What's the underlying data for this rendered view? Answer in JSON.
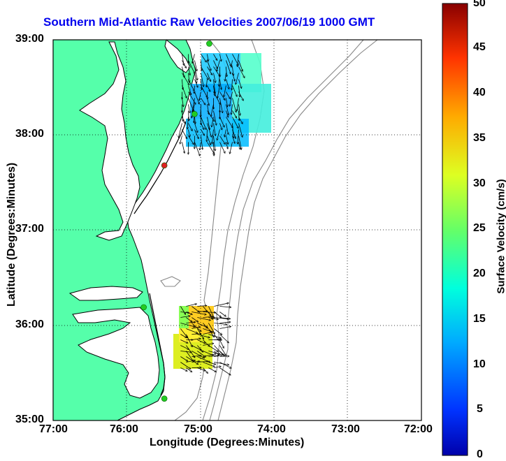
{
  "title": "Southern Mid-Atlantic Raw Velocities 2007/06/19 1000 GMT",
  "map": {
    "xlabel": "Longitude (Degrees:Minutes)",
    "ylabel": "Latitude (Degrees:Minutes)",
    "lon_ticks": [
      "77:00",
      "76:00",
      "75:00",
      "74:00",
      "73:00",
      "72:00"
    ],
    "lat_ticks": [
      "39:00",
      "38:00",
      "37:00",
      "36:00",
      "35:00"
    ],
    "lon_range": [
      -77,
      -72
    ],
    "lat_range": [
      35,
      39
    ],
    "grid": "dotted",
    "land_color": "#55ffaa"
  },
  "colorbar": {
    "label": "Surface Velocity (cm/s)",
    "ticks": [
      "0",
      "5",
      "10",
      "15",
      "20",
      "25",
      "30",
      "35",
      "40",
      "45",
      "50"
    ],
    "range": [
      0,
      50
    ],
    "colormap": "jet"
  },
  "stations": [
    {
      "lon": -74.88,
      "lat": 38.96,
      "color": "#22cc22"
    },
    {
      "lon": -75.08,
      "lat": 38.22,
      "color": "#22cc22"
    },
    {
      "lon": -75.49,
      "lat": 37.68,
      "color": "#dd2222"
    },
    {
      "lon": -75.77,
      "lat": 36.19,
      "color": "#22cc22"
    },
    {
      "lon": -75.49,
      "lat": 35.23,
      "color": "#22cc22"
    }
  ],
  "velocity_regions": [
    {
      "lon_range": [
        -75.25,
        -74.45
      ],
      "lat_range": [
        37.88,
        38.85
      ],
      "speed_range": [
        8,
        17
      ]
    },
    {
      "lon_range": [
        -75.27,
        -74.7
      ],
      "lat_range": [
        35.5,
        36.2
      ],
      "speed_range": [
        17,
        35
      ]
    }
  ]
}
